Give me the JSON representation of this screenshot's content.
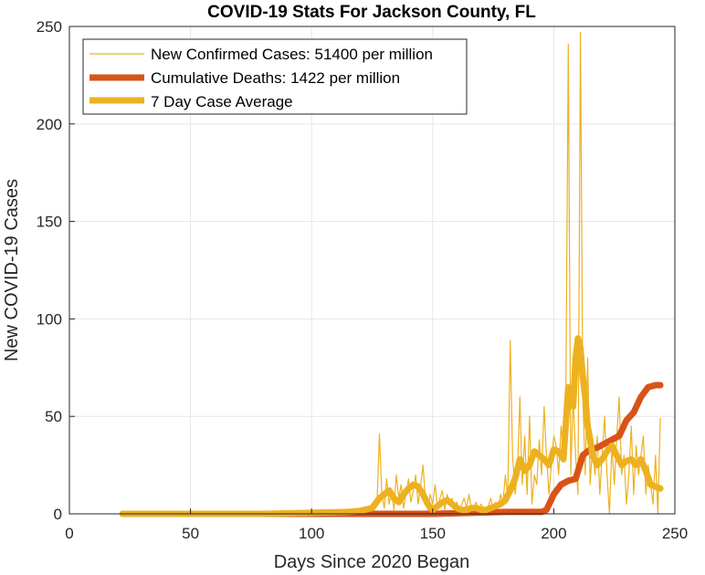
{
  "chart_data": {
    "type": "line",
    "title": "COVID-19 Stats For Jackson County, FL",
    "xlabel": "Days Since 2020 Began",
    "ylabel": "New COVID-19 Cases",
    "xlim": [
      0,
      250
    ],
    "ylim": [
      0,
      250
    ],
    "xticks": [
      "0",
      "50",
      "100",
      "150",
      "200",
      "250"
    ],
    "yticks": [
      "0",
      "50",
      "100",
      "150",
      "200",
      "250"
    ],
    "grid": true,
    "legend_position": "top-left",
    "series": [
      {
        "name": "New Confirmed Cases: 51400 per million",
        "color": "#EDB120",
        "x": [
          22,
          60,
          100,
          110,
          120,
          125,
          127,
          128,
          129,
          130,
          131,
          132,
          133,
          134,
          135,
          136,
          137,
          138,
          139,
          140,
          141,
          142,
          143,
          144,
          145,
          146,
          147,
          148,
          149,
          150,
          151,
          152,
          153,
          154,
          155,
          156,
          157,
          158,
          159,
          160,
          161,
          162,
          163,
          164,
          165,
          166,
          167,
          168,
          169,
          170,
          171,
          172,
          173,
          174,
          175,
          176,
          177,
          178,
          179,
          180,
          181,
          182,
          183,
          184,
          185,
          186,
          187,
          188,
          189,
          190,
          191,
          192,
          193,
          194,
          195,
          196,
          197,
          198,
          199,
          200,
          201,
          202,
          203,
          204,
          205,
          206,
          207,
          208,
          209,
          210,
          211,
          212,
          213,
          214,
          215,
          216,
          217,
          218,
          219,
          220,
          221,
          222,
          223,
          224,
          225,
          226,
          227,
          228,
          229,
          230,
          231,
          232,
          233,
          234,
          235,
          236,
          237,
          238,
          239,
          240,
          241,
          242,
          243,
          244
        ],
        "values": [
          0,
          0,
          0,
          0,
          1,
          2,
          5,
          41,
          10,
          3,
          18,
          5,
          12,
          2,
          20,
          8,
          15,
          3,
          10,
          18,
          6,
          12,
          20,
          5,
          14,
          25,
          8,
          2,
          10,
          5,
          15,
          3,
          8,
          12,
          2,
          10,
          5,
          8,
          3,
          6,
          2,
          5,
          8,
          3,
          10,
          2,
          4,
          6,
          1,
          5,
          3,
          2,
          4,
          8,
          2,
          6,
          3,
          10,
          5,
          20,
          8,
          89,
          30,
          10,
          20,
          60,
          15,
          40,
          10,
          50,
          5,
          20,
          15,
          38,
          20,
          55,
          30,
          10,
          25,
          40,
          35,
          20,
          45,
          30,
          65,
          241,
          20,
          60,
          30,
          10,
          247,
          60,
          20,
          80,
          15,
          35,
          20,
          40,
          10,
          30,
          50,
          20,
          0,
          35,
          15,
          40,
          60,
          20,
          30,
          5,
          20,
          45,
          10,
          35,
          20,
          30,
          40,
          10,
          25,
          15,
          5,
          30,
          0,
          49
        ]
      },
      {
        "name": "Cumulative Deaths: 1422 per million",
        "color": "#D95319",
        "x": [
          22,
          130,
          150,
          180,
          195,
          197,
          200,
          203,
          206,
          209,
          212,
          215,
          218,
          221,
          224,
          227,
          230,
          233,
          236,
          239,
          242,
          244
        ],
        "values": [
          0,
          0,
          0,
          1,
          1,
          2,
          10,
          15,
          17,
          18,
          30,
          33,
          34,
          36,
          38,
          40,
          48,
          52,
          60,
          65,
          66,
          66
        ]
      },
      {
        "name": "7 Day Case Average",
        "color": "#EDB120",
        "x": [
          22,
          80,
          100,
          115,
          120,
          125,
          128,
          130,
          132,
          134,
          136,
          138,
          140,
          142,
          144,
          146,
          148,
          150,
          152,
          154,
          156,
          158,
          160,
          162,
          164,
          166,
          168,
          170,
          172,
          174,
          176,
          178,
          180,
          182,
          184,
          186,
          188,
          190,
          192,
          194,
          196,
          198,
          200,
          202,
          204,
          206,
          207,
          208,
          209,
          210,
          211,
          212,
          213,
          214,
          215,
          216,
          218,
          220,
          222,
          224,
          226,
          228,
          230,
          232,
          234,
          236,
          238,
          240,
          242,
          244
        ],
        "values": [
          0,
          0,
          0.5,
          1,
          1.5,
          3,
          8,
          10,
          12,
          8,
          6,
          10,
          13,
          15,
          14,
          10,
          5,
          2,
          4,
          6,
          7,
          5,
          3,
          2,
          2,
          3,
          3,
          2,
          2,
          3,
          4,
          5,
          7,
          12,
          18,
          28,
          22,
          25,
          32,
          30,
          28,
          25,
          33,
          32,
          28,
          65,
          60,
          55,
          80,
          90,
          85,
          70,
          60,
          45,
          38,
          30,
          25,
          28,
          32,
          35,
          30,
          25,
          27,
          28,
          25,
          28,
          22,
          15,
          14,
          13
        ]
      }
    ]
  }
}
